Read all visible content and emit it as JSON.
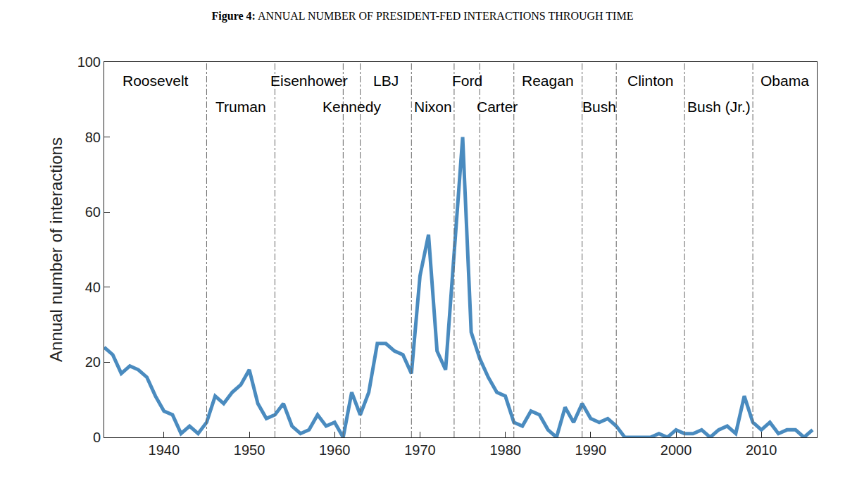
{
  "chart_data": {
    "type": "line",
    "title": "Figure 4: ANNUAL NUMBER OF PRESIDENT-FED INTERACTIONS THROUGH TIME",
    "y_label": "Annual number of interactions",
    "x": [
      1933,
      1934,
      1935,
      1936,
      1937,
      1938,
      1939,
      1940,
      1941,
      1942,
      1943,
      1944,
      1945,
      1946,
      1947,
      1948,
      1949,
      1950,
      1951,
      1952,
      1953,
      1954,
      1955,
      1956,
      1957,
      1958,
      1959,
      1960,
      1961,
      1962,
      1963,
      1964,
      1965,
      1966,
      1967,
      1968,
      1969,
      1970,
      1971,
      1972,
      1973,
      1974,
      1975,
      1976,
      1977,
      1978,
      1979,
      1980,
      1981,
      1982,
      1983,
      1984,
      1985,
      1986,
      1987,
      1988,
      1989,
      1990,
      1991,
      1992,
      1993,
      1994,
      1995,
      1996,
      1997,
      1998,
      1999,
      2000,
      2001,
      2002,
      2003,
      2004,
      2005,
      2006,
      2007,
      2008,
      2009,
      2010,
      2011,
      2012,
      2013,
      2014,
      2015,
      2016
    ],
    "values": [
      24,
      22,
      17,
      19,
      18,
      16,
      11,
      7,
      6,
      1,
      3,
      1,
      4,
      11,
      9,
      12,
      14,
      18,
      9,
      5,
      6,
      9,
      3,
      1,
      2,
      6,
      3,
      4,
      0,
      12,
      6,
      12,
      25,
      25,
      23,
      22,
      17,
      43,
      54,
      23,
      18,
      48,
      80,
      28,
      21,
      16,
      12,
      11,
      4,
      3,
      7,
      6,
      2,
      0,
      8,
      4,
      9,
      5,
      4,
      5,
      3,
      0,
      0,
      0,
      0,
      1,
      0,
      2,
      1,
      1,
      2,
      0,
      2,
      3,
      1,
      11,
      4,
      2,
      4,
      1,
      2,
      2,
      0,
      2
    ],
    "color": "#4a8bbf",
    "xlim": [
      1933,
      2016.5
    ],
    "xticks": [
      1940,
      1950,
      1960,
      1970,
      1980,
      1990,
      2000,
      2010
    ],
    "ylim": [
      0,
      100
    ],
    "yticks": [
      0,
      20,
      40,
      60,
      80,
      100
    ],
    "grid": false,
    "presidents": [
      {
        "name": "Roosevelt",
        "start": 1933
      },
      {
        "name": "Truman",
        "start": 1945
      },
      {
        "name": "Eisenhower",
        "start": 1953
      },
      {
        "name": "Kennedy",
        "start": 1961
      },
      {
        "name": "LBJ",
        "start": 1963
      },
      {
        "name": "Nixon",
        "start": 1969
      },
      {
        "name": "Ford",
        "start": 1974
      },
      {
        "name": "Carter",
        "start": 1977
      },
      {
        "name": "Reagan",
        "start": 1981
      },
      {
        "name": "Bush",
        "start": 1989
      },
      {
        "name": "Clinton",
        "start": 1993
      },
      {
        "name": "Bush (Jr.)",
        "start": 2001
      },
      {
        "name": "Obama",
        "start": 2009
      }
    ]
  }
}
